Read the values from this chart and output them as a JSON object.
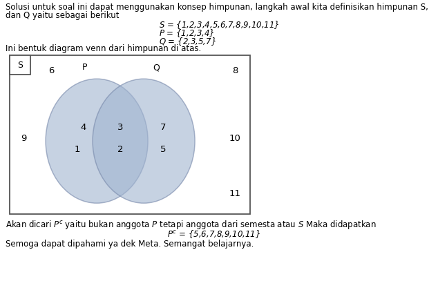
{
  "title_line1": "Solusi untuk soal ini dapat menggunakan konsep himpunan, langkah awal kita definisikan himpunan S, P",
  "title_line2": "dan Q yaitu sebagai berikut",
  "set_S": "$S$ = {1,2,3,4,5,6,7,8,9,10,11}",
  "set_P": "$P$ = {1,2,3,4}",
  "set_Q": "$Q$ = {2,3,5,7}",
  "desc": "Ini bentuk diagram venn dari himpunan di atas.",
  "footer1": "Akan dicari $P^c$ yaitu bukan anggota $P$ tetapi anggota dari semesta atau $S$ Maka didapatkan",
  "footer2": "$P^c$ = {5,6,7,8,9,10,11}",
  "footer3": "Semoga dapat dipahami ya dek Meta. Semangat belajarnya.",
  "ellipse_color": "#a0b4d0",
  "ellipse_alpha": 0.6,
  "intersection_color": "#7090be",
  "intersection_alpha": 0.65,
  "rect_edgecolor": "#555555",
  "bg_color": "#ffffff",
  "fs_body": 8.5,
  "fs_num": 9.5,
  "fs_label": 9
}
